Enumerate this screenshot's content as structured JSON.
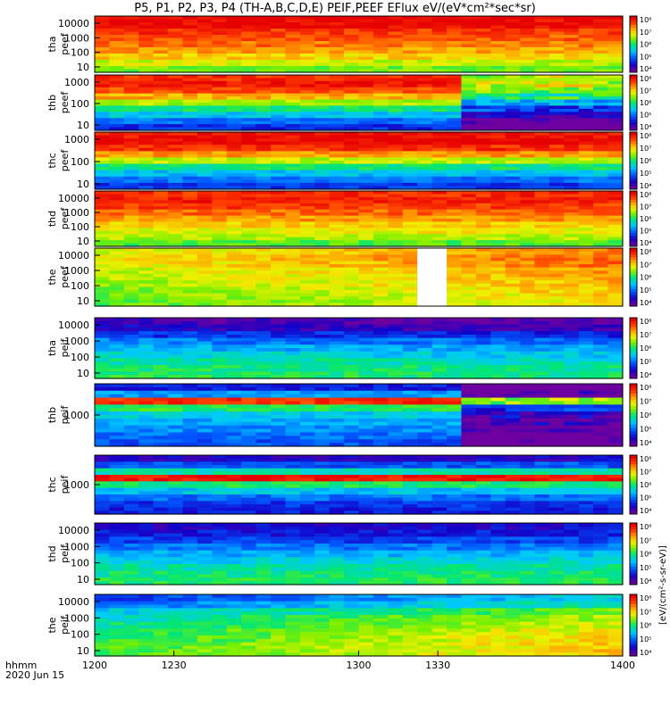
{
  "title": "P5, P1, P2, P3, P4 (TH-A,B,C,D,E) PEIF,PEEF EFlux eV/(eV*cm²*sec*sr)",
  "bottom_left": {
    "line1": "hhmm",
    "line2": "2020 Jun 15"
  },
  "colorbar_unit_label": "[eV/(cm²-s-sr-eV)]",
  "chart_data": {
    "type": "heatmap",
    "title": "P5, P1, P2, P3, P4 (TH-A,B,C,D,E) PEIF,PEEF EFlux eV/(eV*cm²*sec*sr)",
    "x_tick_labels": [
      "1200",
      "1230",
      "1300",
      "1330",
      "1400"
    ],
    "x_ticks": [
      1200,
      1230,
      1300,
      1330,
      1400
    ],
    "xlim": [
      1200,
      1400
    ],
    "y_scale": "log",
    "colormap": "rainbow",
    "colorbar_tick_labels": [
      "10⁴",
      "10⁵",
      "10⁶",
      "10⁷",
      "10⁸"
    ],
    "panels": [
      {
        "label": "tha\npeef",
        "y_tick_labels": [
          "10000",
          "1000",
          "100",
          "10"
        ],
        "ylim": [
          7,
          30000
        ],
        "profile": [
          9,
          9,
          8.6,
          8.4,
          8.2,
          7.9,
          7.6,
          7.2,
          6.8
        ],
        "trend": -0.1,
        "white_gap": null
      },
      {
        "label": "thb\npeef",
        "y_tick_labels": [
          "1000",
          "100",
          "10"
        ],
        "ylim": [
          3,
          3000
        ],
        "profile": [
          8.6,
          8.8,
          8.4,
          7.8,
          7.0,
          6.2,
          5.6,
          5.0,
          4.5
        ],
        "trend": 0.0,
        "late_change": {
          "from": 1338,
          "shift": -2.0
        },
        "white_gap": null
      },
      {
        "label": "thc\npeef",
        "y_tick_labels": [
          "1000",
          "100",
          "10"
        ],
        "ylim": [
          3,
          3000
        ],
        "profile": [
          8.8,
          9.0,
          8.6,
          7.9,
          7.1,
          6.2,
          5.6,
          5.0,
          4.6
        ],
        "trend": 0.0,
        "white_gap": null
      },
      {
        "label": "thd\npeef",
        "y_tick_labels": [
          "10000",
          "1000",
          "100",
          "10"
        ],
        "ylim": [
          7,
          30000
        ],
        "profile": [
          8.6,
          8.7,
          8.5,
          8.2,
          7.9,
          7.6,
          7.3,
          7.0,
          6.6
        ],
        "trend": 0.05,
        "white_gap": null
      },
      {
        "label": "the\npeef",
        "y_tick_labels": [
          "10000",
          "1000",
          "100",
          "10"
        ],
        "ylim": [
          7,
          30000
        ],
        "profile": [
          7.2,
          7.4,
          7.3,
          7.1,
          7.0,
          6.9,
          6.8,
          6.7,
          6.6
        ],
        "trend": 0.9,
        "white_gap": [
          1325,
          1334
        ]
      },
      {
        "label": "tha\npeif",
        "y_tick_labels": [
          "10000",
          "1000",
          "100",
          "10"
        ],
        "ylim": [
          7,
          30000
        ],
        "profile": [
          3.8,
          4.1,
          4.6,
          5.1,
          5.5,
          5.8,
          6.1,
          6.3,
          6.4
        ],
        "trend": -0.2,
        "white_gap": null
      },
      {
        "label": "thb\npeif",
        "y_tick_labels": [
          "1000"
        ],
        "ylim": [
          50,
          30000
        ],
        "profile": [
          4.4,
          5.3,
          8.6,
          6.4,
          5.7,
          5.4,
          5.2,
          5.0,
          4.8
        ],
        "trend": 0.0,
        "late_change": {
          "from": 1337,
          "shift": -2.2
        },
        "white_gap": null
      },
      {
        "label": "thc\npeif",
        "y_tick_labels": [
          "1000"
        ],
        "ylim": [
          50,
          30000
        ],
        "profile": [
          4.1,
          4.8,
          6.0,
          8.8,
          6.3,
          5.6,
          5.0,
          4.6,
          4.4
        ],
        "trend": 0.0,
        "white_gap": null
      },
      {
        "label": "thd\npeif",
        "y_tick_labels": [
          "10000",
          "1000",
          "100",
          "10"
        ],
        "ylim": [
          7,
          30000
        ],
        "profile": [
          4.1,
          4.3,
          4.6,
          5.0,
          5.4,
          5.7,
          6.0,
          6.2,
          6.3
        ],
        "trend": 0.1,
        "white_gap": null
      },
      {
        "label": "the\npeif",
        "y_tick_labels": [
          "10000",
          "1000",
          "100",
          "10"
        ],
        "ylim": [
          7,
          30000
        ],
        "profile": [
          4.6,
          5.0,
          5.6,
          5.9,
          6.1,
          6.3,
          6.4,
          6.5,
          6.5
        ],
        "trend": 1.2,
        "white_gap": null
      }
    ]
  }
}
